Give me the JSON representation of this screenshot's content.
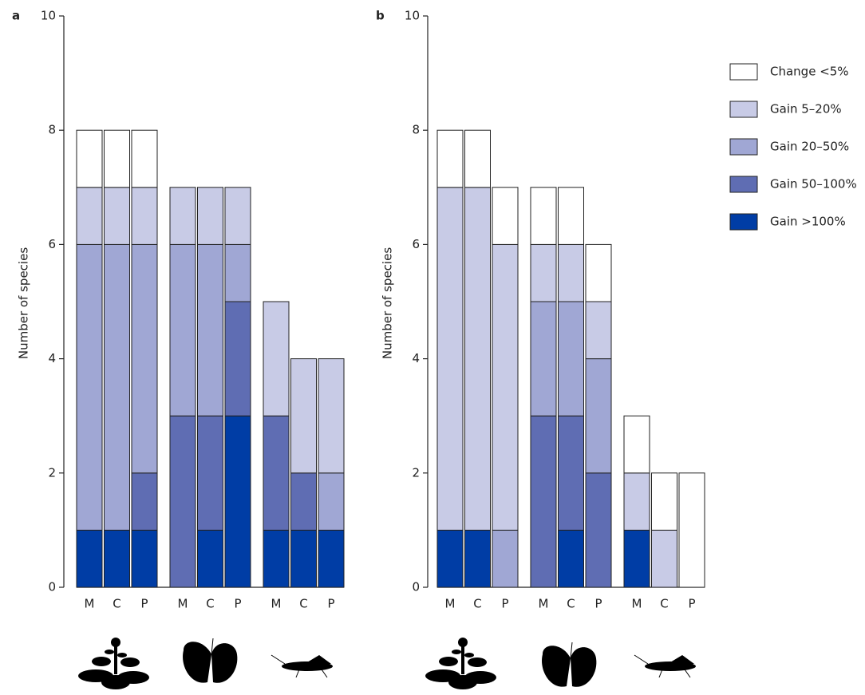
{
  "chart_data": [
    {
      "type": "bar",
      "stacked": true,
      "panel": "a",
      "y_label": "Number of species",
      "categories": [
        "M",
        "C",
        "P",
        "M",
        "C",
        "P",
        "M",
        "C",
        "P"
      ],
      "ylim": [
        0,
        10
      ],
      "yticks": [
        0,
        2,
        4,
        6,
        8,
        10
      ],
      "series": [
        {
          "color": "#ffffff",
          "values": [
            1,
            1,
            1,
            0,
            0,
            0,
            0,
            0,
            0
          ]
        },
        {
          "color": "#c8cbe6",
          "values": [
            1,
            1,
            1,
            1,
            1,
            1,
            2,
            2,
            2
          ]
        },
        {
          "color": "#a0a7d4",
          "values": [
            5,
            5,
            4,
            3,
            3,
            1,
            0,
            0,
            1
          ]
        },
        {
          "color": "#5f6db3",
          "values": [
            0,
            0,
            1,
            3,
            2,
            2,
            2,
            1,
            0
          ]
        },
        {
          "color": "#003da5",
          "values": [
            1,
            1,
            1,
            0,
            1,
            3,
            1,
            1,
            1
          ]
        }
      ]
    },
    {
      "type": "bar",
      "stacked": true,
      "panel": "b",
      "y_label": "Number of species",
      "categories": [
        "M",
        "C",
        "P",
        "M",
        "C",
        "P",
        "M",
        "C",
        "P"
      ],
      "ylim": [
        0,
        10
      ],
      "yticks": [
        0,
        2,
        4,
        6,
        8,
        10
      ],
      "series": [
        {
          "name": "Change <5%",
          "color": "#ffffff",
          "values": [
            1,
            1,
            1,
            1,
            1,
            1,
            1,
            1,
            2
          ]
        },
        {
          "name": "Gain 5–20%",
          "color": "#c8cbe6",
          "values": [
            6,
            6,
            5,
            1,
            1,
            1,
            1,
            1,
            0
          ]
        },
        {
          "name": "Gain 20–50%",
          "color": "#a0a7d4",
          "values": [
            0,
            0,
            1,
            2,
            2,
            2,
            0,
            0,
            0
          ]
        },
        {
          "name": "Gain 50–100%",
          "color": "#5f6db3",
          "values": [
            0,
            0,
            0,
            3,
            2,
            2,
            0,
            0,
            0
          ]
        },
        {
          "name": "Gain >100%",
          "color": "#003da5",
          "values": [
            1,
            1,
            0,
            0,
            1,
            0,
            1,
            0,
            0
          ]
        }
      ]
    }
  ]
}
